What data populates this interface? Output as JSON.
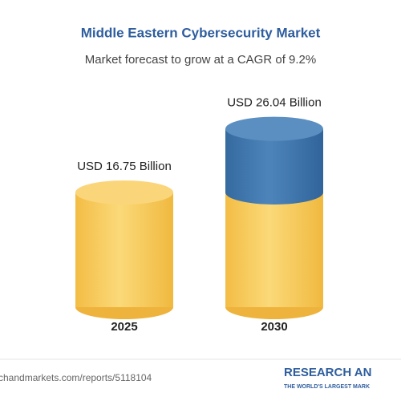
{
  "chart_data": {
    "type": "cylinder",
    "title": "Middle Eastern Cybersecurity Market",
    "subtitle": "Market forecast to grow at a CAGR of 9.2%",
    "categories": [
      "2025",
      "2030"
    ],
    "values": [
      16.75,
      26.04
    ],
    "value_labels": [
      "USD 16.75 Billion",
      "USD 26.04 Billion"
    ],
    "color": "#f6c75a",
    "growth_color": "#3f76ab",
    "source": "chandmarkets.com/reports/5118104",
    "brand": "RESEARCH AN",
    "tagline": "THE WORLD'S LARGEST MARK"
  }
}
